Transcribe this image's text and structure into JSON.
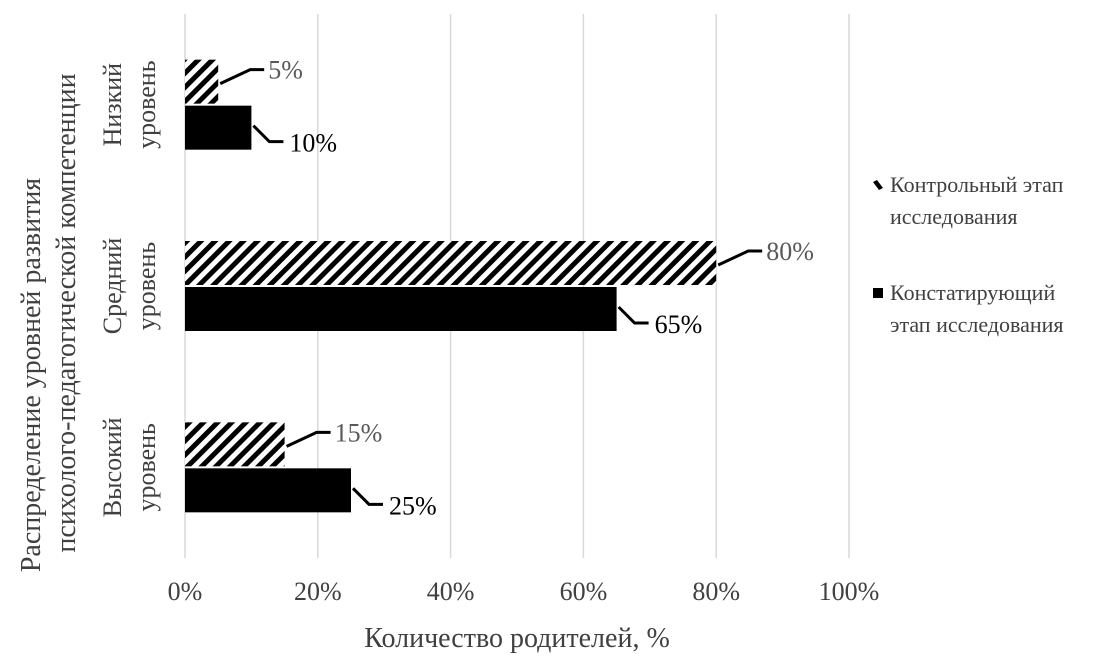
{
  "chart_data": {
    "type": "bar",
    "orientation": "horizontal",
    "title": "",
    "xlabel": "Количество родителей, %",
    "ylabel_lines": [
      "Распределение уровней развития",
      "психолого-педагогической компетенции"
    ],
    "xlim": [
      0,
      100
    ],
    "x_ticks": [
      "0%",
      "20%",
      "40%",
      "60%",
      "80%",
      "100%"
    ],
    "categories": [
      {
        "name": "Низкий уровень",
        "lines": [
          "Низкий",
          "уровень"
        ]
      },
      {
        "name": "Средний уровень",
        "lines": [
          "Средний",
          "уровень"
        ]
      },
      {
        "name": "Высокий уровень",
        "lines": [
          "Высокий",
          "уровень"
        ]
      }
    ],
    "series": [
      {
        "name": "Контрольный этап исследования",
        "legend_lines": [
          "Контрольный этап",
          "исследования"
        ],
        "values": [
          5,
          80,
          15
        ],
        "labels": [
          "5%",
          "80%",
          "15%"
        ],
        "pattern": "diagonal-hatch",
        "label_color": "#595959"
      },
      {
        "name": "Констатирующий этап исследования",
        "legend_lines": [
          "Констатирующий",
          "этап исследования"
        ],
        "values": [
          10,
          65,
          25
        ],
        "labels": [
          "10%",
          "65%",
          "25%"
        ],
        "pattern": "solid",
        "label_color": "#000000"
      }
    ],
    "grid": true,
    "legend_position": "right",
    "colors": {
      "bar": "#000000",
      "grid": "#d9d9d9",
      "text": "#404040"
    }
  }
}
